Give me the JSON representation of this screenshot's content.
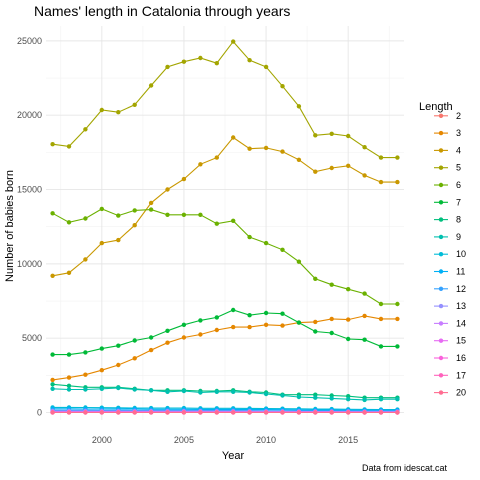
{
  "chart_data": {
    "type": "line",
    "title": "Names' length in Catalonia through years",
    "xlabel": "Year",
    "ylabel": "Number of babies born",
    "caption": "Data from idescat.cat",
    "legend_title": "Length",
    "legend_position": "right",
    "grid": true,
    "xlim": [
      1996.6,
      2018.4
    ],
    "ylim": [
      -500,
      26000
    ],
    "x_ticks": [
      2000,
      2005,
      2010,
      2015
    ],
    "y_ticks": [
      0,
      5000,
      10000,
      15000,
      20000,
      25000
    ],
    "x_tick_labels": [
      "2000",
      "2005",
      "2010",
      "2015"
    ],
    "y_tick_labels": [
      "0",
      "5000",
      "10000",
      "15000",
      "20000",
      "25000"
    ],
    "x": [
      1997,
      1998,
      1999,
      2000,
      2001,
      2002,
      2003,
      2004,
      2005,
      2006,
      2007,
      2008,
      2009,
      2010,
      2011,
      2012,
      2013,
      2014,
      2015,
      2016,
      2017,
      2018
    ],
    "series": [
      {
        "name": "2",
        "color": "#F8766D",
        "values": [
          30,
          30,
          30,
          30,
          30,
          30,
          30,
          30,
          30,
          30,
          30,
          30,
          30,
          30,
          30,
          30,
          30,
          30,
          30,
          30,
          30,
          30
        ]
      },
      {
        "name": "3",
        "color": "#E58700",
        "values": [
          2200,
          2350,
          2550,
          2850,
          3200,
          3650,
          4200,
          4700,
          5050,
          5250,
          5550,
          5750,
          5750,
          5900,
          5850,
          6050,
          6100,
          6300,
          6250,
          6500,
          6300,
          6300
        ]
      },
      {
        "name": "4",
        "color": "#C99800",
        "values": [
          9200,
          9400,
          10300,
          11400,
          11600,
          12600,
          14100,
          15000,
          15700,
          16700,
          17150,
          18500,
          17750,
          17800,
          17550,
          17000,
          16200,
          16450,
          16600,
          15950,
          15500,
          15500
        ]
      },
      {
        "name": "5",
        "color": "#A3A500",
        "values": [
          18050,
          17900,
          19050,
          20350,
          20200,
          20700,
          22000,
          23250,
          23600,
          23850,
          23500,
          24950,
          23700,
          23250,
          21950,
          20600,
          18650,
          18750,
          18600,
          17850,
          17150,
          17150
        ]
      },
      {
        "name": "6",
        "color": "#6BB100",
        "values": [
          13400,
          12800,
          13050,
          13700,
          13250,
          13600,
          13650,
          13300,
          13300,
          13300,
          12700,
          12900,
          11800,
          11400,
          10950,
          10150,
          9000,
          8600,
          8300,
          8000,
          7300,
          7300
        ]
      },
      {
        "name": "7",
        "color": "#00BA38",
        "values": [
          3900,
          3900,
          4050,
          4300,
          4500,
          4850,
          5050,
          5500,
          5900,
          6200,
          6400,
          6900,
          6550,
          6700,
          6650,
          6050,
          5450,
          5350,
          4950,
          4900,
          4450,
          4450
        ]
      },
      {
        "name": "8",
        "color": "#00BF7D",
        "values": [
          1900,
          1800,
          1700,
          1700,
          1700,
          1600,
          1500,
          1500,
          1500,
          1450,
          1450,
          1500,
          1400,
          1350,
          1200,
          1200,
          1200,
          1150,
          1100,
          1000,
          1000,
          1000
        ]
      },
      {
        "name": "9",
        "color": "#00C0AF",
        "values": [
          1600,
          1550,
          1550,
          1600,
          1650,
          1550,
          1500,
          1400,
          1450,
          1350,
          1400,
          1400,
          1350,
          1250,
          1150,
          1050,
          1000,
          950,
          900,
          850,
          900,
          900
        ]
      },
      {
        "name": "10",
        "color": "#00BCD8",
        "values": [
          350,
          350,
          340,
          330,
          320,
          310,
          300,
          300,
          300,
          290,
          290,
          290,
          280,
          270,
          260,
          250,
          240,
          230,
          220,
          210,
          200,
          200
        ]
      },
      {
        "name": "11",
        "color": "#00B0F6",
        "values": [
          250,
          250,
          240,
          240,
          230,
          230,
          220,
          220,
          220,
          210,
          210,
          210,
          200,
          200,
          190,
          180,
          170,
          170,
          160,
          150,
          150,
          150
        ]
      },
      {
        "name": "12",
        "color": "#35A2FF",
        "values": [
          150,
          150,
          150,
          145,
          145,
          140,
          140,
          140,
          135,
          135,
          130,
          130,
          125,
          120,
          115,
          110,
          105,
          100,
          100,
          95,
          90,
          90
        ]
      },
      {
        "name": "13",
        "color": "#9590FF",
        "values": [
          100,
          100,
          100,
          95,
          95,
          95,
          90,
          90,
          90,
          90,
          85,
          85,
          80,
          80,
          75,
          70,
          70,
          65,
          65,
          60,
          60,
          60
        ]
      },
      {
        "name": "14",
        "color": "#C77CFF",
        "values": [
          60,
          60,
          60,
          58,
          58,
          56,
          56,
          54,
          54,
          52,
          52,
          50,
          50,
          48,
          46,
          44,
          42,
          40,
          40,
          38,
          36,
          36
        ]
      },
      {
        "name": "15",
        "color": "#E76BF3",
        "values": [
          40,
          40,
          40,
          38,
          38,
          37,
          37,
          36,
          36,
          35,
          35,
          34,
          34,
          33,
          32,
          31,
          30,
          29,
          28,
          27,
          26,
          26
        ]
      },
      {
        "name": "16",
        "color": "#FA62DB",
        "values": [
          20,
          20,
          20,
          20,
          20,
          20,
          19,
          19,
          19,
          19,
          18,
          18,
          18,
          17,
          17,
          16,
          16,
          15,
          15,
          14,
          14,
          14
        ]
      },
      {
        "name": "17",
        "color": "#FF62BC",
        "values": [
          10,
          10,
          10,
          10,
          10,
          10,
          10,
          10,
          10,
          10,
          9,
          9,
          9,
          9,
          9,
          8,
          8,
          8,
          8,
          7,
          7,
          7
        ]
      },
      {
        "name": "20",
        "color": "#FF6C91",
        "values": [
          5,
          5,
          5,
          5,
          5,
          5,
          5,
          5,
          5,
          5,
          5,
          5,
          5,
          5,
          5,
          5,
          5,
          5,
          5,
          5,
          5,
          5
        ]
      }
    ]
  }
}
